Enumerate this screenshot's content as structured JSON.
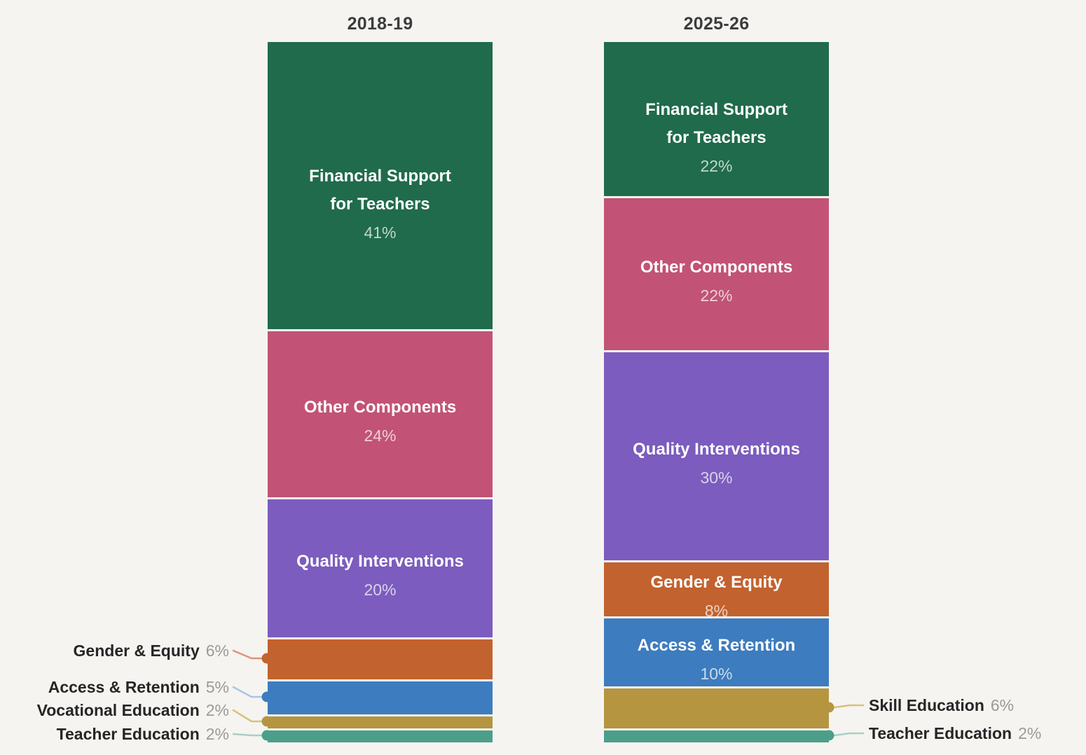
{
  "background_color": "#f5f4f1",
  "styles": {
    "title_color": "#3c3c3c",
    "annotation_label_color": "#262626",
    "annotation_pct_color": "#9a9a9a",
    "inside_name_color": "#ffffff",
    "inside_pct_color": "rgba(255,255,255,0.72)"
  },
  "chart_data": {
    "type": "bar",
    "variant": "100-percent-stacked-columns",
    "unit": "percent",
    "legend_position": "none",
    "grid": false,
    "columns": [
      {
        "title": "2018-19",
        "segments": [
          {
            "label": "Financial Support for Teachers",
            "label_lines": [
              "Financial Support",
              "for Teachers"
            ],
            "value_pct": 41,
            "value_label": "41%",
            "color": "#206b4c",
            "label_placement": "inside"
          },
          {
            "label": "Other Components",
            "label_lines": [
              "Other Components"
            ],
            "value_pct": 24,
            "value_label": "24%",
            "color": "#c25376",
            "label_placement": "inside"
          },
          {
            "label": "Quality Interventions",
            "label_lines": [
              "Quality Interventions"
            ],
            "value_pct": 20,
            "value_label": "20%",
            "color": "#7c5cbe",
            "label_placement": "inside"
          },
          {
            "label": "Gender & Equity",
            "value_pct": 6,
            "value_label": "6%",
            "color": "#c2622e",
            "label_placement": "outside-left",
            "leader_color": "#de9473"
          },
          {
            "label": "Access & Retention",
            "value_pct": 5,
            "value_label": "5%",
            "color": "#3d7cbe",
            "label_placement": "outside-left",
            "leader_color": "#a9c6e6"
          },
          {
            "label": "Vocational Education",
            "value_pct": 2,
            "value_label": "2%",
            "color": "#b59540",
            "label_placement": "outside-left",
            "leader_color": "#d6c27d"
          },
          {
            "label": "Teacher Education",
            "value_pct": 2,
            "value_label": "2%",
            "color": "#4b9f8a",
            "label_placement": "outside-left",
            "leader_color": "#a8d0c5"
          }
        ]
      },
      {
        "title": "2025-26",
        "segments": [
          {
            "label": "Financial Support for Teachers",
            "label_lines": [
              "Financial Support",
              "for Teachers"
            ],
            "value_pct": 22,
            "value_label": "22%",
            "color": "#206b4c",
            "label_placement": "inside"
          },
          {
            "label": "Other Components",
            "label_lines": [
              "Other Components"
            ],
            "value_pct": 22,
            "value_label": "22%",
            "color": "#c25376",
            "label_placement": "inside"
          },
          {
            "label": "Quality Interventions",
            "label_lines": [
              "Quality Interventions"
            ],
            "value_pct": 30,
            "value_label": "30%",
            "color": "#7c5cbe",
            "label_placement": "inside"
          },
          {
            "label": "Gender & Equity",
            "label_lines": [
              "Gender & Equity"
            ],
            "value_pct": 8,
            "value_label": "8%",
            "color": "#c2622e",
            "label_placement": "inside"
          },
          {
            "label": "Access & Retention",
            "label_lines": [
              "Access & Retention"
            ],
            "value_pct": 10,
            "value_label": "10%",
            "color": "#3d7cbe",
            "label_placement": "inside"
          },
          {
            "label": "Skill Education",
            "value_pct": 6,
            "value_label": "6%",
            "color": "#b59540",
            "label_placement": "outside-right",
            "leader_color": "#d6c27d"
          },
          {
            "label": "Teacher Education",
            "value_pct": 2,
            "value_label": "2%",
            "color": "#4b9f8a",
            "label_placement": "outside-right",
            "leader_color": "#a8d0c5"
          }
        ]
      }
    ]
  }
}
